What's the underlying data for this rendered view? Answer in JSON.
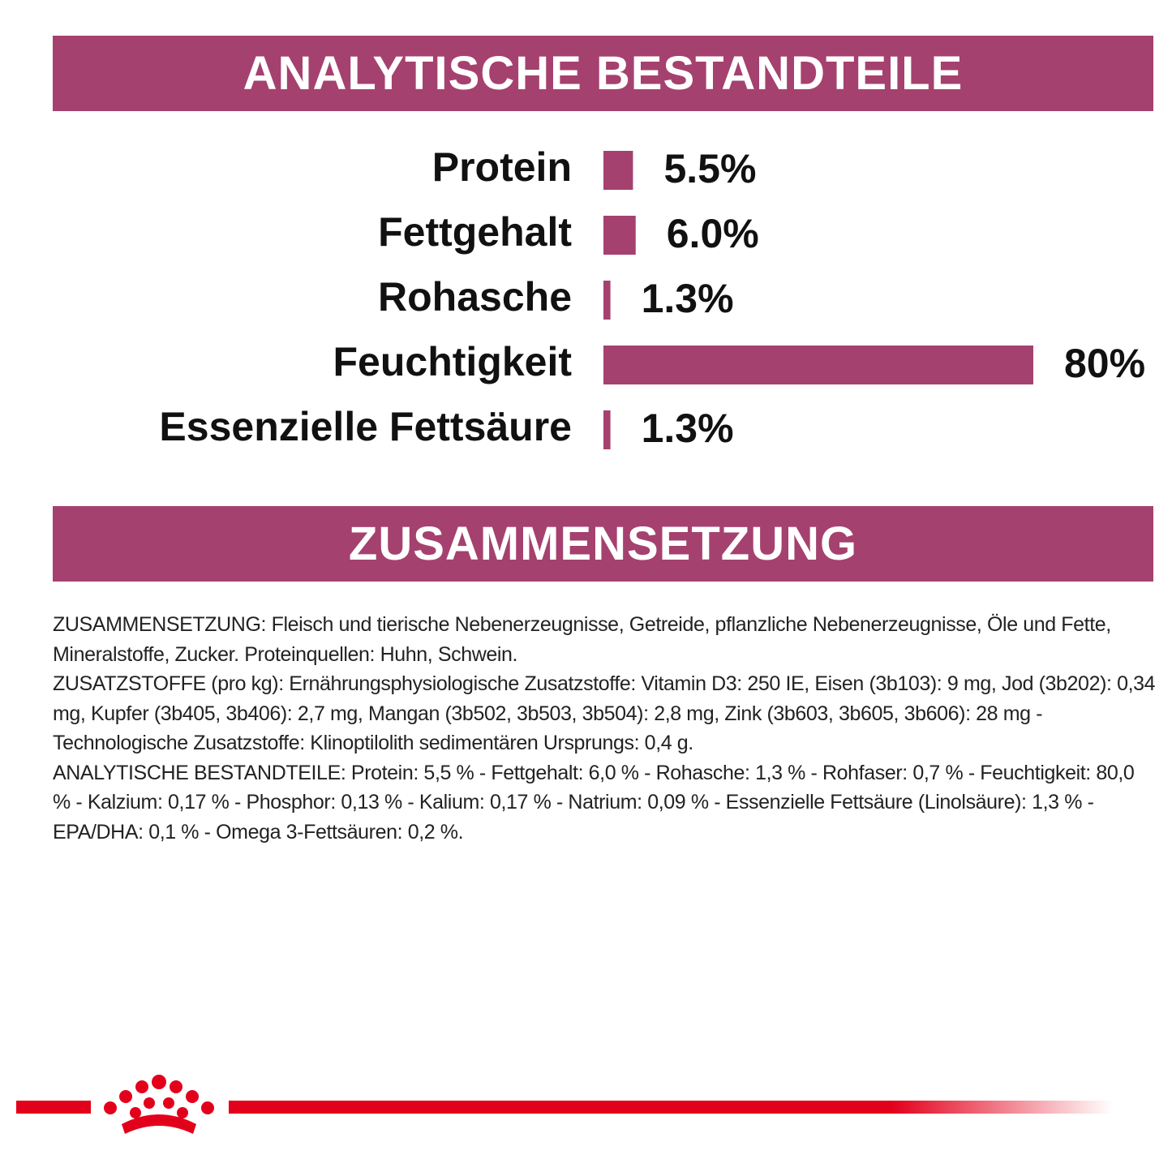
{
  "chart_data": {
    "type": "bar",
    "orientation": "horizontal",
    "title": "ANALYTISCHE BESTANDTEILE",
    "categories": [
      "Protein",
      "Fettgehalt",
      "Rohasche",
      "Feuchtigkeit",
      "Essenzielle Fettsäure"
    ],
    "values": [
      5.5,
      6.0,
      1.3,
      80,
      1.3
    ],
    "value_labels": [
      "5.5%",
      "6.0%",
      "1.3%",
      "80%",
      "1.3%"
    ],
    "color": "#a5416f"
  },
  "composition": {
    "title": "ZUSAMMENSETZUNG",
    "paragraphs": [
      "ZUSAMMENSETZUNG: Fleisch und tierische Nebenerzeugnisse, Getreide, pflanzliche Nebenerzeugnisse, Öle und Fette, Mineralstoffe, Zucker. Proteinquellen: Huhn, Schwein.",
      "ZUSATZSTOFFE (pro kg): Ernährungsphysiologische Zusatzstoffe: Vitamin D3: 250 IE, Eisen (3b103): 9 mg, Jod (3b202): 0,34 mg, Kupfer (3b405, 3b406): 2,7 mg, Mangan (3b502, 3b503, 3b504): 2,8 mg, Zink (3b603, 3b605, 3b606): 28 mg - Technologische Zusatzstoffe: Klinoptilolith sedimentären Ursprungs: 0,4 g.",
      "ANALYTISCHE BESTANDTEILE: Protein: 5,5 % - Fettgehalt: 6,0 % - Rohasche: 1,3 % - Rohfaser: 0,7 % - Feuchtigkeit: 80,0 % - Kalzium: 0,17 % - Phosphor: 0,13 % - Kalium: 0,17 % - Natrium: 0,09 % - Essenzielle Fettsäure (Linolsäure): 1,3 % - EPA/DHA: 0,1 % - Omega 3-Fettsäuren: 0,2 %."
    ]
  }
}
